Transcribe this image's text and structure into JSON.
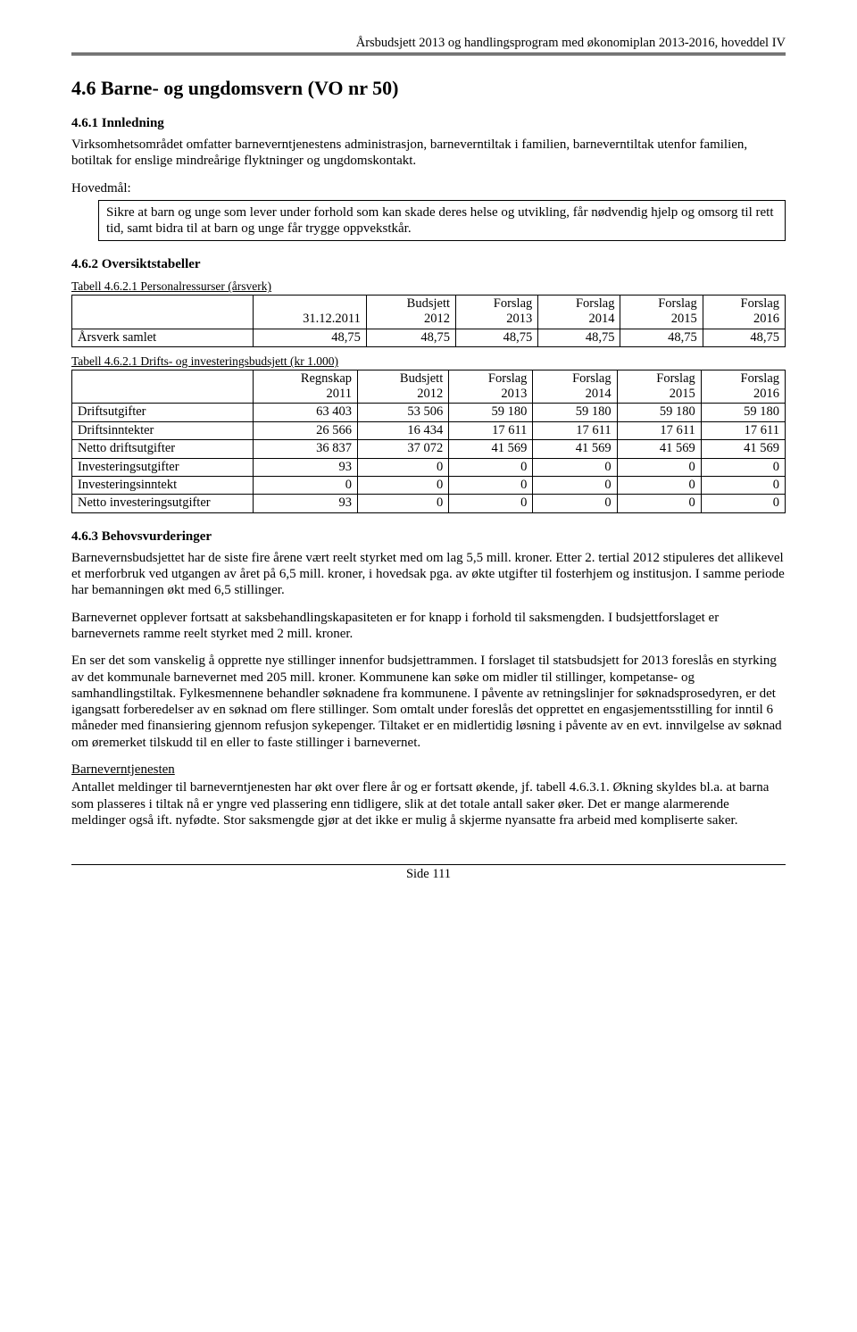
{
  "header": "Årsbudsjett 2013 og handlingsprogram med økonomiplan 2013-2016, hoveddel IV",
  "title": "4.6 Barne- og ungdomsvern (VO nr 50)",
  "s461": {
    "heading": "4.6.1 Innledning",
    "p1": "Virksomhetsområdet omfatter barneverntjenestens administrasjon, barneverntiltak i familien, barneverntiltak utenfor familien, botiltak for enslige mindreårige flyktninger og ungdomskontakt.",
    "hovedmal_label": "Hovedmål:",
    "hovedmal_text": "Sikre at barn og unge som lever under forhold som kan skade deres helse og utvikling, får nødvendig hjelp og omsorg til rett tid, samt bidra til at barn og unge får trygge oppvekstkår."
  },
  "s462": {
    "heading": "4.6.2 Oversiktstabeller",
    "table1": {
      "caption": "Tabell 4.6.2.1 Personalressurser (årsverk)",
      "columns": [
        "",
        "31.12.2011",
        "Budsjett 2012",
        "Forslag 2013",
        "Forslag 2014",
        "Forslag 2015",
        "Forslag 2016"
      ],
      "col_top": [
        "",
        "",
        "Budsjett",
        "Forslag",
        "Forslag",
        "Forslag",
        "Forslag"
      ],
      "col_bot": [
        "",
        "31.12.2011",
        "2012",
        "2013",
        "2014",
        "2015",
        "2016"
      ],
      "rows": [
        [
          "Årsverk samlet",
          "48,75",
          "48,75",
          "48,75",
          "48,75",
          "48,75",
          "48,75"
        ]
      ]
    },
    "table2": {
      "caption": "Tabell 4.6.2.1 Drifts- og investeringsbudsjett (kr 1.000)",
      "col_top": [
        "",
        "Regnskap",
        "Budsjett",
        "Forslag",
        "Forslag",
        "Forslag",
        "Forslag"
      ],
      "col_bot": [
        "",
        "2011",
        "2012",
        "2013",
        "2014",
        "2015",
        "2016"
      ],
      "rows": [
        [
          "Driftsutgifter",
          "63 403",
          "53 506",
          "59 180",
          "59 180",
          "59 180",
          "59 180"
        ],
        [
          "Driftsinntekter",
          "26 566",
          "16 434",
          "17 611",
          "17 611",
          "17 611",
          "17 611"
        ],
        [
          "Netto driftsutgifter",
          "36 837",
          "37 072",
          "41 569",
          "41 569",
          "41 569",
          "41 569"
        ],
        [
          "Investeringsutgifter",
          "93",
          "0",
          "0",
          "0",
          "0",
          "0"
        ],
        [
          "Investeringsinntekt",
          "0",
          "0",
          "0",
          "0",
          "0",
          "0"
        ],
        [
          "Netto investeringsutgifter",
          "93",
          "0",
          "0",
          "0",
          "0",
          "0"
        ]
      ]
    }
  },
  "s463": {
    "heading": "4.6.3 Behovsvurderinger",
    "p1": "Barnevernsbudsjettet har de siste fire årene vært reelt styrket med om lag 5,5 mill. kroner. Etter 2. tertial 2012 stipuleres det allikevel et merforbruk ved utgangen av året på 6,5 mill. kroner, i hovedsak pga. av økte utgifter til fosterhjem og institusjon. I samme periode har bemanningen økt med 6,5 stillinger.",
    "p2": "Barnevernet opplever fortsatt at saksbehandlingskapasiteten er for knapp i forhold til saksmengden. I budsjettforslaget er barnevernets ramme reelt styrket med 2 mill. kroner.",
    "p3": "En ser det som vanskelig å opprette nye stillinger innenfor budsjettrammen. I forslaget til statsbudsjett for 2013 foreslås en styrking av det kommunale barnevernet med 205 mill. kroner. Kommunene kan søke om midler til stillinger, kompetanse- og samhandlingstiltak. Fylkesmennene behandler søknadene fra kommunene. I påvente av retningslinjer for søknadsprosedyren, er det igangsatt forberedelser av en søknad om flere stillinger. Som omtalt under foreslås det opprettet en engasjementsstilling for inntil 6 måneder med finansiering gjennom refusjon sykepenger. Tiltaket er en midlertidig løsning i påvente av en evt. innvilgelse av søknad om øremerket tilskudd til en eller to faste stillinger i barnevernet.",
    "sub_heading": "Barneverntjenesten",
    "p4": "Antallet meldinger til barneverntjenesten har økt over flere år og er fortsatt økende, jf. tabell 4.6.3.1. Økning skyldes bl.a. at barna som plasseres i tiltak nå er yngre ved plassering enn tidligere, slik at det totale antall saker øker. Det er mange alarmerende meldinger også ift. nyfødte. Stor saksmengde gjør at det ikke er mulig å skjerme nyansatte fra arbeid med kompliserte saker."
  },
  "footer": "Side 111"
}
